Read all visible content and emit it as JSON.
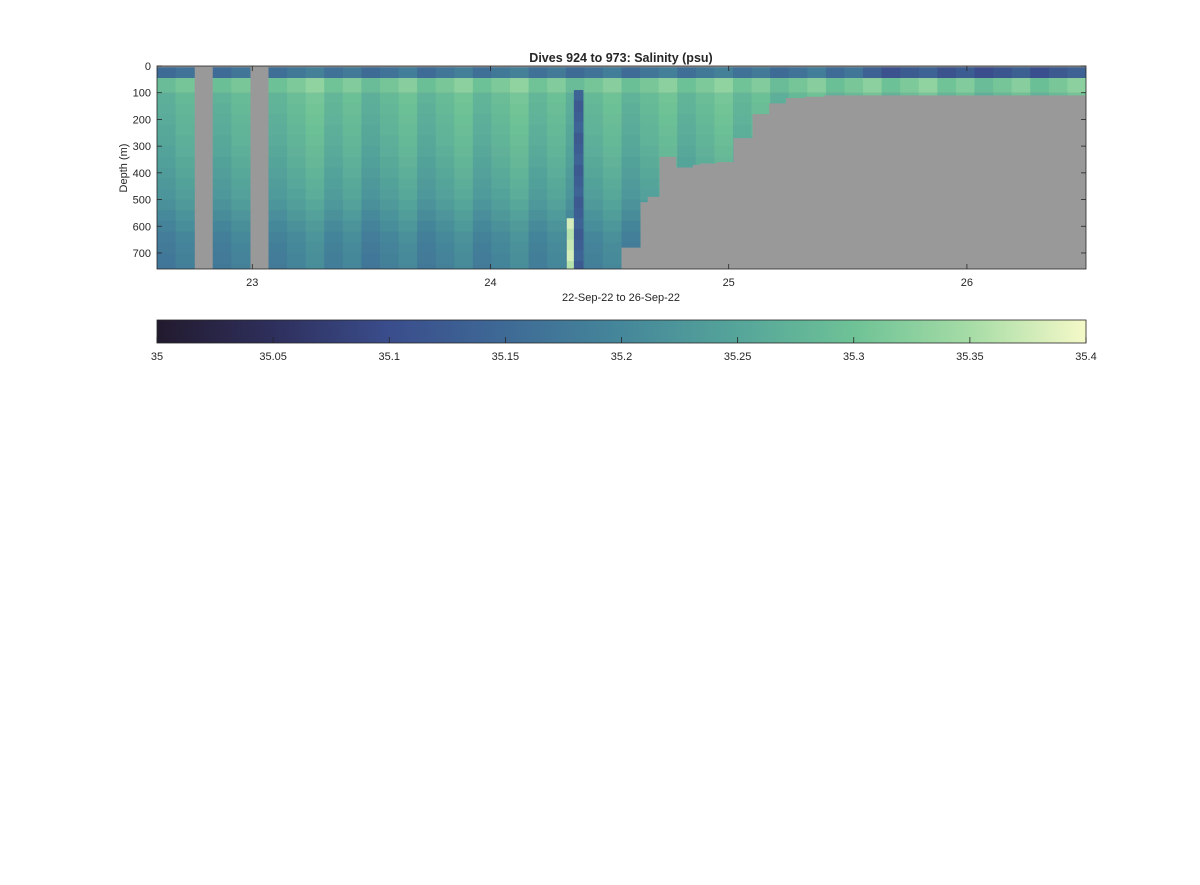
{
  "chart_data": {
    "type": "heatmap",
    "title": "Dives 924 to 973: Salinity (psu)",
    "xlabel": "22-Sep-22 to 26-Sep-22",
    "ylabel": "Depth (m)",
    "x_unit": "day of Sep 2022",
    "xlim": [
      22.6,
      26.5
    ],
    "ylim": [
      0,
      760
    ],
    "y_reversed": true,
    "x_ticks": [
      23,
      24,
      25,
      26
    ],
    "x_tick_labels": [
      "23",
      "24",
      "25",
      "26"
    ],
    "y_ticks": [
      0,
      100,
      200,
      300,
      400,
      500,
      600,
      700
    ],
    "y_tick_labels": [
      "0",
      "100",
      "200",
      "300",
      "400",
      "500",
      "600",
      "700"
    ],
    "no_data_color": "#999999",
    "grid": false,
    "colormap": [
      "#221A2E",
      "#2E2F5C",
      "#3A4D8C",
      "#3E6A96",
      "#45879A",
      "#55A59A",
      "#6EC296",
      "#A6DCA6",
      "#F5F9C8"
    ],
    "colorbar": {
      "range": [
        35,
        35.4
      ],
      "ticks": [
        35,
        35.05,
        35.1,
        35.15,
        35.2,
        35.25,
        35.3,
        35.35,
        35.4
      ],
      "tick_labels": [
        "35",
        "35.05",
        "35.1",
        "35.15",
        "35.2",
        "35.25",
        "35.3",
        "35.35",
        "35.4"
      ],
      "placement": "bottom"
    },
    "surface_layer": {
      "depth_range": [
        5,
        45
      ],
      "salinity": 35.17
    },
    "thermocline_layer": {
      "depth_range": [
        45,
        100
      ],
      "salinity": 35.31
    },
    "deep_salinity_profile": {
      "depth": [
        100,
        300,
        500,
        650,
        750
      ],
      "salinity": [
        35.29,
        35.27,
        35.24,
        35.2,
        35.19
      ]
    },
    "gaps": [
      {
        "x": [
          22.76,
          22.84
        ]
      },
      {
        "x": [
          23.0,
          23.08
        ]
      }
    ],
    "anomalies": [
      {
        "x": [
          24.35,
          24.39
        ],
        "depth": [
          90,
          760
        ],
        "salinity": 35.13
      },
      {
        "x": [
          24.32,
          24.35
        ],
        "depth": [
          570,
          760
        ],
        "salinity": 35.37
      }
    ],
    "seafloor": {
      "x": [
        22.6,
        24.55,
        24.55,
        24.63,
        24.63,
        24.66,
        24.66,
        24.71,
        24.71,
        24.78,
        24.78,
        24.85,
        24.85,
        24.88,
        24.88,
        24.95,
        24.95,
        25.02,
        25.02,
        25.1,
        25.1,
        25.17,
        25.17,
        25.24,
        25.24,
        25.32,
        25.32,
        25.4,
        25.4,
        26.5
      ],
      "depth": [
        760,
        760,
        680,
        680,
        510,
        510,
        490,
        490,
        340,
        340,
        380,
        380,
        370,
        370,
        365,
        365,
        360,
        360,
        270,
        270,
        180,
        180,
        140,
        140,
        120,
        120,
        115,
        115,
        110,
        110
      ]
    }
  }
}
